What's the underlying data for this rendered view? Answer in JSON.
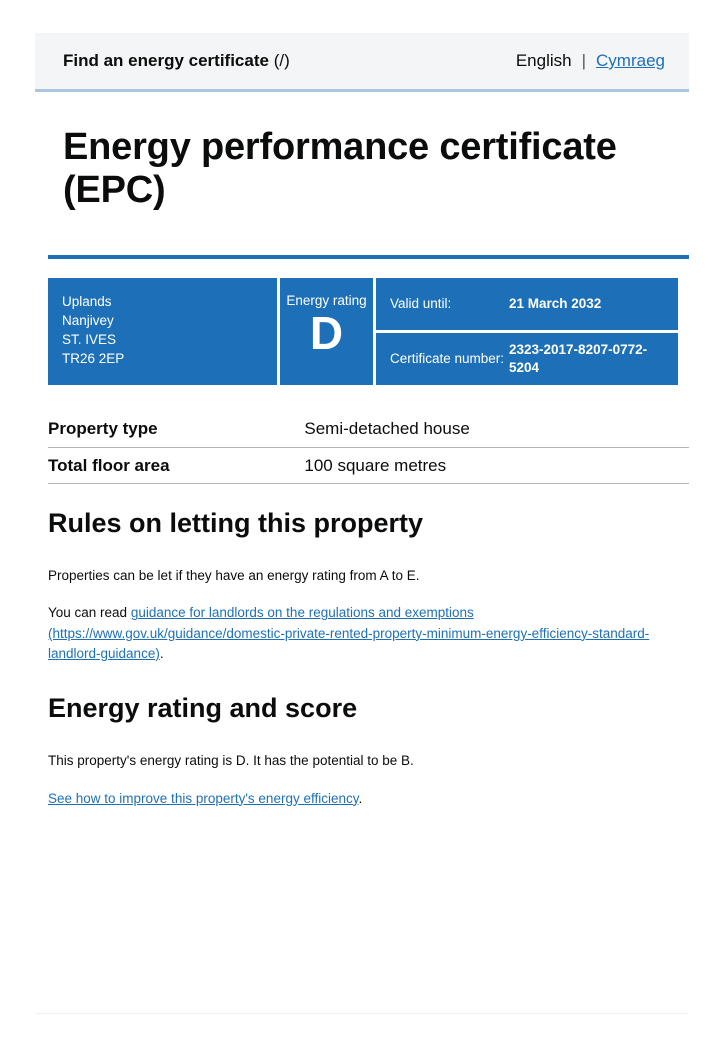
{
  "header": {
    "service_name": "Find an energy certificate",
    "service_href_note": "(/)",
    "language": {
      "current": "English",
      "separator": "|",
      "switch_link": "Cymraeg"
    }
  },
  "page": {
    "title_line1": "Energy performance certificate",
    "title_line2": "(EPC)"
  },
  "summary_box": {
    "address_lines": [
      "Uplands",
      "Nanjivey",
      "ST. IVES",
      "TR26 2EP"
    ],
    "energy_rating_label": "Energy rating",
    "energy_rating_value": "D",
    "valid_until_label": "Valid until:",
    "valid_until_value": "21 March 2032",
    "certificate_number_label": "Certificate number:",
    "certificate_number_value": "2323-2017-8207-0772-5204"
  },
  "property_details": {
    "rows": [
      {
        "label": "Property type",
        "value": "Semi-detached house"
      },
      {
        "label": "Total floor area",
        "value": "100 square metres"
      }
    ]
  },
  "letting_rules": {
    "heading": "Rules on letting this property",
    "paragraph1": "Properties can be let if they have an energy rating from A to E.",
    "paragraph2_prefix": "You can read ",
    "paragraph2_link": "guidance for landlords on the regulations and exemptions (https://www.gov.uk/guidance/domestic-private-rented-property-minimum-energy-efficiency-standard-landlord-guidance)",
    "paragraph2_suffix": "."
  },
  "rating_score": {
    "heading": "Energy rating and score",
    "paragraph": "This property's energy rating is D. It has the potential to be B.",
    "improve_link": "See how to improve this property's energy efficiency",
    "improve_link_suffix": "."
  },
  "colors": {
    "brand_blue": "#1d70b8",
    "header_background": "#f4f5f6",
    "header_border": "#a9c6e2",
    "table_border": "#b1b4b6"
  }
}
